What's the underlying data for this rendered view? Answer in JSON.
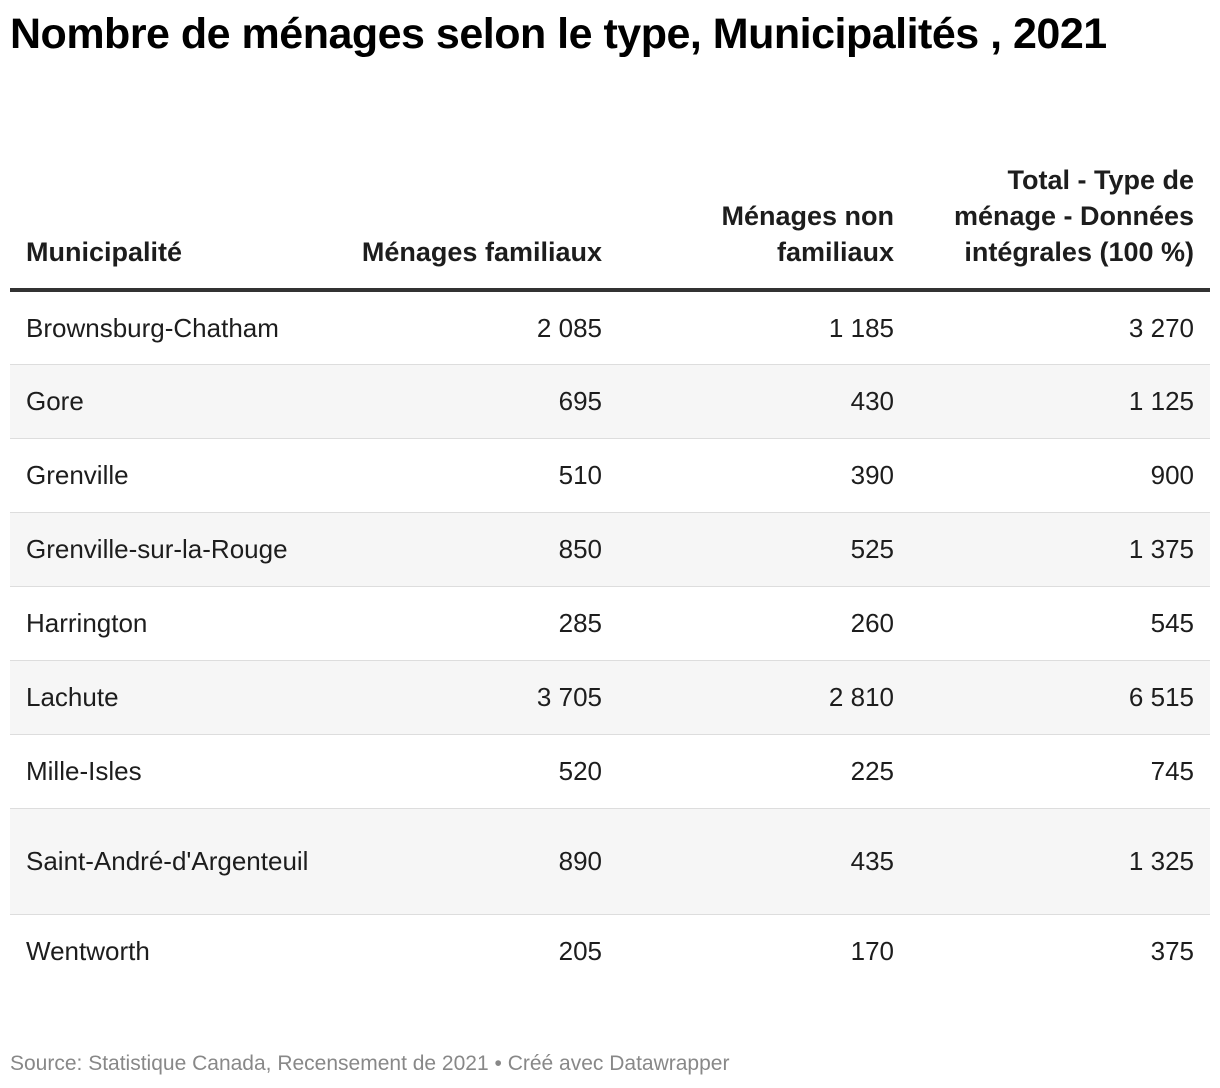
{
  "title": "Nombre de ménages selon le type, Municipalités , 2021",
  "footer": {
    "source": "Source: Statistique Canada, Recensement de 2021",
    "separator": " • ",
    "credit": "Créé avec Datawrapper"
  },
  "chart_data": {
    "type": "table",
    "title": "Nombre de ménages selon le type, Municipalités , 2021",
    "columns": [
      "Municipalité",
      "Ménages familiaux",
      "Ménages non familiaux",
      "Total - Type de ménage - Données intégrales (100 %)"
    ],
    "rows": [
      [
        "Brownsburg-Chatham",
        "2 085",
        "1 185",
        "3 270"
      ],
      [
        "Gore",
        "695",
        "430",
        "1 125"
      ],
      [
        "Grenville",
        "510",
        "390",
        "900"
      ],
      [
        "Grenville-sur-la-Rouge",
        "850",
        "525",
        "1 375"
      ],
      [
        "Harrington",
        "285",
        "260",
        "545"
      ],
      [
        "Lachute",
        "3 705",
        "2 810",
        "6 515"
      ],
      [
        "Mille-Isles",
        "520",
        "225",
        "745"
      ],
      [
        "Saint-André-d'Argenteuil",
        "890",
        "435",
        "1 325"
      ],
      [
        "Wentworth",
        "205",
        "170",
        "375"
      ]
    ],
    "values": {
      "Ménages familiaux": [
        2085,
        695,
        510,
        850,
        285,
        3705,
        520,
        890,
        205
      ],
      "Ménages non familiaux": [
        1185,
        430,
        390,
        525,
        260,
        2810,
        225,
        435,
        170
      ],
      "Total": [
        3270,
        1125,
        900,
        1375,
        545,
        6515,
        745,
        1325,
        375
      ]
    },
    "source": "Source: Statistique Canada, Recensement de 2021"
  },
  "colors": {
    "text": "#1d1d1d",
    "stripe": "#f6f6f6",
    "header_rule": "#333333",
    "row_rule": "#dddddd",
    "footer": "#888888"
  }
}
